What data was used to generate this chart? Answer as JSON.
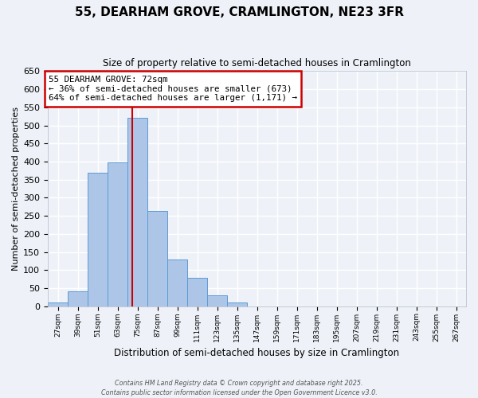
{
  "title": "55, DEARHAM GROVE, CRAMLINGTON, NE23 3FR",
  "subtitle": "Size of property relative to semi-detached houses in Cramlington",
  "xlabel": "Distribution of semi-detached houses by size in Cramlington",
  "ylabel": "Number of semi-detached properties",
  "bin_labels": [
    "27sqm",
    "39sqm",
    "51sqm",
    "63sqm",
    "75sqm",
    "87sqm",
    "99sqm",
    "111sqm",
    "123sqm",
    "135sqm",
    "147sqm",
    "159sqm",
    "171sqm",
    "183sqm",
    "195sqm",
    "207sqm",
    "219sqm",
    "231sqm",
    "243sqm",
    "255sqm",
    "267sqm"
  ],
  "bin_edges": [
    21,
    33,
    45,
    57,
    69,
    81,
    93,
    105,
    117,
    129,
    141,
    153,
    165,
    177,
    189,
    201,
    213,
    225,
    237,
    249,
    261,
    273
  ],
  "bar_heights": [
    10,
    42,
    370,
    398,
    522,
    263,
    130,
    78,
    30,
    10,
    0,
    0,
    0,
    0,
    0,
    0,
    0,
    0,
    0,
    0,
    0
  ],
  "bar_color": "#adc6e8",
  "bar_edge_color": "#5b9bd5",
  "property_size": 72,
  "vline_color": "#cc0000",
  "annotation_text": "55 DEARHAM GROVE: 72sqm\n← 36% of semi-detached houses are smaller (673)\n64% of semi-detached houses are larger (1,171) →",
  "annotation_box_color": "#ffffff",
  "annotation_box_edge": "#cc0000",
  "ylim": [
    0,
    650
  ],
  "yticks": [
    0,
    50,
    100,
    150,
    200,
    250,
    300,
    350,
    400,
    450,
    500,
    550,
    600,
    650
  ],
  "bg_color": "#eef2f8",
  "grid_color": "#ffffff",
  "footer_line1": "Contains HM Land Registry data © Crown copyright and database right 2025.",
  "footer_line2": "Contains public sector information licensed under the Open Government Licence v3.0."
}
